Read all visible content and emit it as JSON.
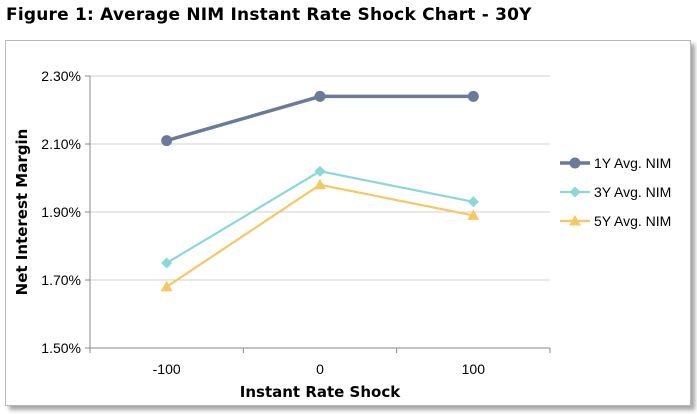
{
  "page": {
    "title": "Figure 1: Average NIM Instant Rate Shock Chart - 30Y"
  },
  "chart_data": {
    "type": "line",
    "title": "Figure 1: Average NIM Instant Rate Shock Chart - 30Y",
    "xlabel": "Instant Rate Shock",
    "ylabel": "Net Interest Margin",
    "categories": [
      "-100",
      "0",
      "100"
    ],
    "y_ticks": [
      "1.50%",
      "1.70%",
      "1.90%",
      "2.10%",
      "2.30%"
    ],
    "y_tick_values": [
      1.5,
      1.7,
      1.9,
      2.1,
      2.3
    ],
    "ylim": [
      1.5,
      2.3
    ],
    "grid": true,
    "legend_position": "right",
    "series": [
      {
        "name": "1Y Avg. NIM",
        "values": [
          2.11,
          2.24,
          2.24
        ],
        "color": "#6b7a99",
        "marker": "circle"
      },
      {
        "name": "3Y Avg. NIM",
        "values": [
          1.75,
          2.02,
          1.93
        ],
        "color": "#8ad8d8",
        "marker": "diamond"
      },
      {
        "name": "5Y Avg. NIM",
        "values": [
          1.68,
          1.98,
          1.89
        ],
        "color": "#f5c863",
        "marker": "triangle"
      }
    ]
  }
}
